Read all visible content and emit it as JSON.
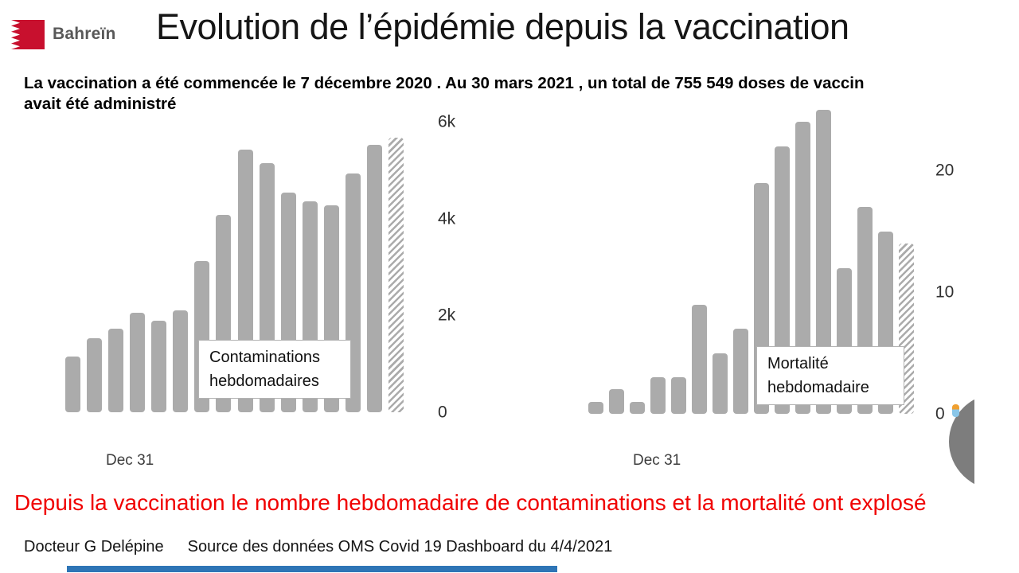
{
  "header": {
    "country_label": "Bahreïn",
    "title": "Evolution de l’épidémie depuis la vaccination"
  },
  "intro": {
    "line1": "La vaccination a été commencée le 7 décembre 2020 . Au 30 mars 2021 , un total de 755 549 doses de vaccin",
    "line2": "avait été administré"
  },
  "chart_data": [
    {
      "type": "bar",
      "title": "Contaminations hebdomadaires",
      "label_lines": [
        "Contaminations",
        "hebdomadaires"
      ],
      "values": [
        1150,
        1530,
        1730,
        2060,
        1890,
        2110,
        3130,
        4070,
        5420,
        5150,
        4540,
        4350,
        4280,
        4940,
        5530,
        5680
      ],
      "hatched_last": true,
      "hatched_note": "last bar drawn with diagonal hatching (incomplete week)",
      "yticks": [
        {
          "label": "0",
          "value": 0
        },
        {
          "label": "2k",
          "value": 2000
        },
        {
          "label": "4k",
          "value": 4000
        },
        {
          "label": "6k",
          "value": 6000
        }
      ],
      "ylim": [
        0,
        6050
      ],
      "x_first_tick": "Dec 31",
      "grid": false,
      "bar_color": "#ababab"
    },
    {
      "type": "bar",
      "title": "Mortalité hebdomadaire",
      "label_lines": [
        "Mortalité",
        "hebdomadaire"
      ],
      "values": [
        1,
        2,
        1,
        3,
        3,
        9,
        5,
        7,
        19,
        22,
        24,
        25,
        12,
        17,
        15,
        14
      ],
      "hatched_last": true,
      "hatched_note": "last bar drawn with diagonal hatching (incomplete week)",
      "yticks": [
        {
          "label": "0",
          "value": 0
        },
        {
          "label": "10",
          "value": 10
        },
        {
          "label": "20",
          "value": 20
        }
      ],
      "ylim": [
        0,
        25.2
      ],
      "x_first_tick": "Dec 31",
      "grid": false,
      "bar_color": "#ababab"
    }
  ],
  "conclusion": "Depuis la vaccination le nombre hebdomadaire de contaminations et la mortalité ont explosé",
  "footer": {
    "author": "Docteur G Delépine",
    "source": "Source des données OMS Covid 19 Dashboard du 4/4/2021"
  },
  "colors": {
    "bar_gray": "#ababab",
    "flag_red": "#c8102e",
    "brand_gray": "#595959",
    "conclusion_red": "#f00000",
    "bottom_bar_blue": "#2e75b6",
    "circle_gray": "#7d7d7d"
  }
}
